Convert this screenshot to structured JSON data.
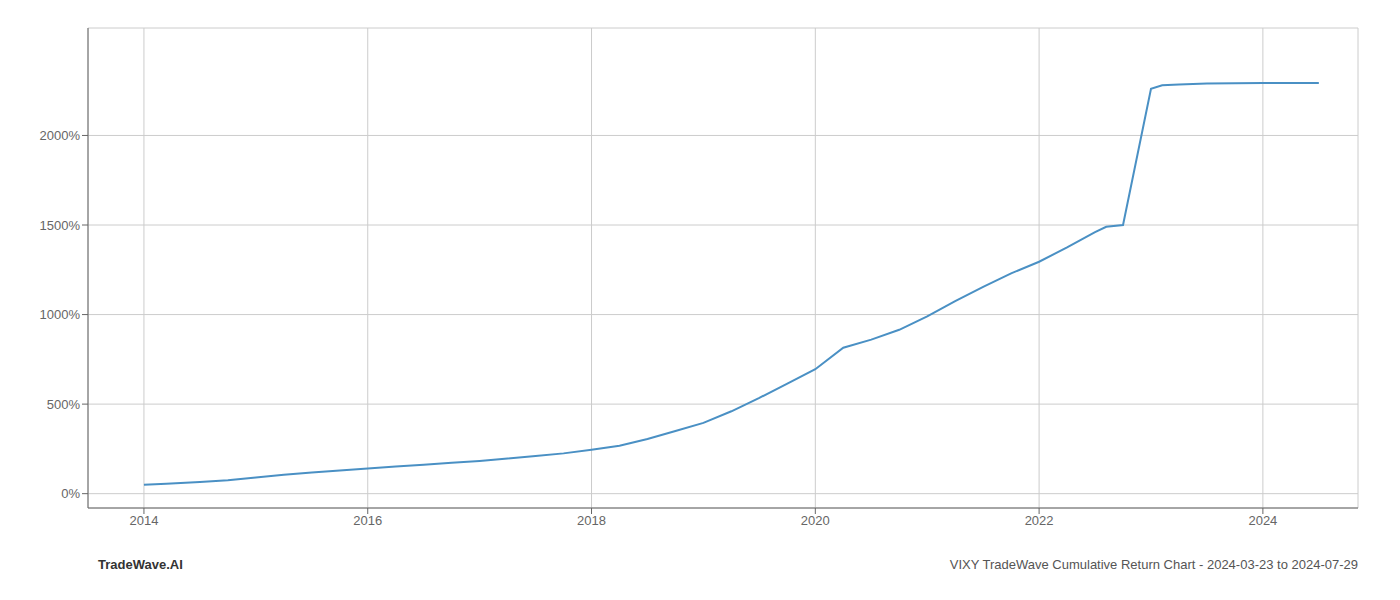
{
  "chart_data": {
    "type": "line",
    "title": "VIXY TradeWave Cumulative Return Chart - 2024-03-23 to 2024-07-29",
    "annotations": [
      "TradeWave.AI"
    ],
    "x": [
      2014.0,
      2014.2,
      2014.5,
      2014.75,
      2015.0,
      2015.25,
      2015.5,
      2015.75,
      2016.0,
      2016.25,
      2016.5,
      2016.75,
      2017.0,
      2017.25,
      2017.5,
      2017.75,
      2018.0,
      2018.25,
      2018.5,
      2018.75,
      2019.0,
      2019.25,
      2019.5,
      2019.75,
      2020.0,
      2020.25,
      2020.5,
      2020.75,
      2021.0,
      2021.25,
      2021.5,
      2021.75,
      2022.0,
      2022.25,
      2022.5,
      2022.6,
      2022.75,
      2023.0,
      2023.1,
      2023.25,
      2023.5,
      2023.75,
      2024.0,
      2024.25,
      2024.5
    ],
    "values": [
      50,
      55,
      65,
      75,
      90,
      105,
      118,
      130,
      140,
      152,
      162,
      172,
      183,
      196,
      210,
      225,
      245,
      268,
      305,
      350,
      395,
      460,
      535,
      615,
      695,
      815,
      860,
      915,
      990,
      1075,
      1155,
      1230,
      1295,
      1375,
      1460,
      1490,
      1500,
      2260,
      2280,
      2285,
      2290,
      2292,
      2293,
      2293,
      2293
    ],
    "color": "#4a90c4",
    "xlim": [
      2013.5,
      2024.85
    ],
    "ylim": [
      -80,
      2600
    ],
    "xticks": [
      2014,
      2016,
      2018,
      2020,
      2022,
      2024
    ],
    "yticks": [
      {
        "value": 0,
        "label": "0%"
      },
      {
        "value": 500,
        "label": "500%"
      },
      {
        "value": 1000,
        "label": "1000%"
      },
      {
        "value": 1500,
        "label": "1500%"
      },
      {
        "value": 2000,
        "label": "2000%"
      }
    ],
    "grid": true
  }
}
